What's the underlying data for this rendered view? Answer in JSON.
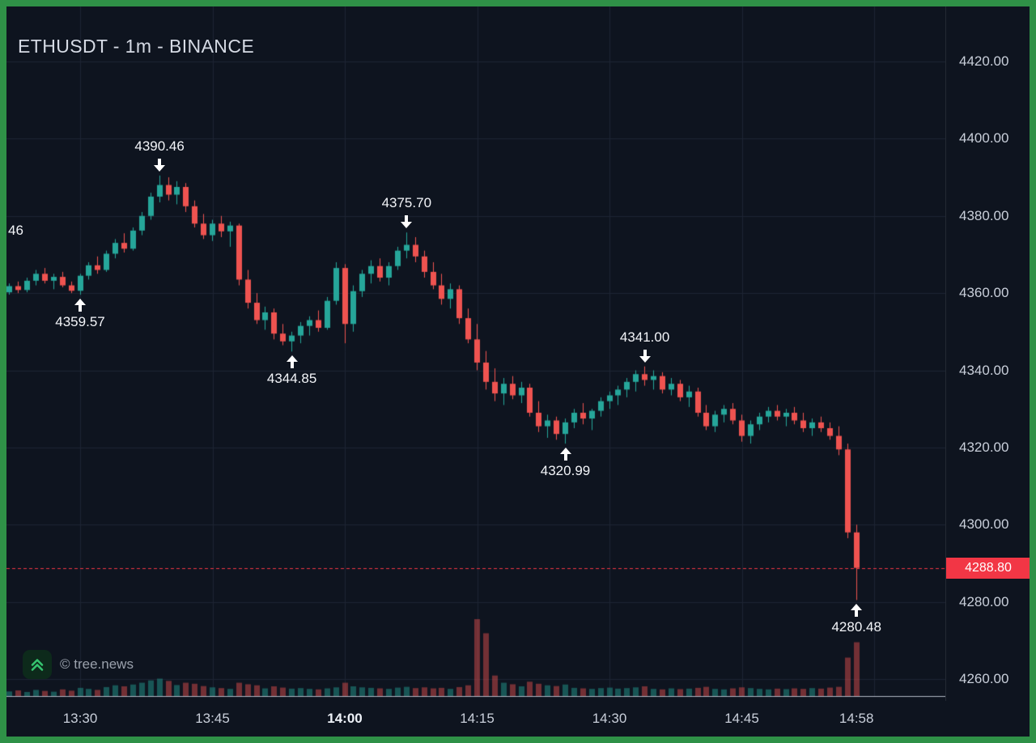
{
  "header": {
    "title": "ETHUSDT - 1m - BINANCE"
  },
  "watermark": {
    "text": "© tree.news"
  },
  "colors": {
    "frame_green": "#2f9147",
    "background": "#0e141f",
    "grid": "#1e2534",
    "up": "#26a69a",
    "down": "#ef5350",
    "volume_up": "rgba(38,166,154,0.45)",
    "volume_down": "rgba(239,83,80,0.45)",
    "axis_text": "#c9cfda",
    "axis_line": "#b2b8c4",
    "annotation_text": "#f3f5f9",
    "price_line": "#f23645",
    "badge_bg": "#f23645",
    "badge_text": "#ffffff"
  },
  "chart_data": {
    "type": "candlestick",
    "symbol": "ETHUSDT",
    "interval": "1m",
    "exchange": "BINANCE",
    "start_time": "13:22",
    "last_price": {
      "label": "4288.80",
      "value": 4288.8
    },
    "clipped_label": "46",
    "y_axis": {
      "top_value": 4420,
      "bottom_value": 4260,
      "ticks": [
        {
          "label": "4420.00",
          "value": 4420
        },
        {
          "label": "4400.00",
          "value": 4400
        },
        {
          "label": "4380.00",
          "value": 4380
        },
        {
          "label": "4360.00",
          "value": 4360
        },
        {
          "label": "4340.00",
          "value": 4340
        },
        {
          "label": "4320.00",
          "value": 4320
        },
        {
          "label": "4300.00",
          "value": 4300
        },
        {
          "label": "4280.00",
          "value": 4280
        },
        {
          "label": "4260.00",
          "value": 4260
        }
      ]
    },
    "x_axis": {
      "ticks": [
        {
          "label": "13:30",
          "minute": 8,
          "bold": false
        },
        {
          "label": "13:45",
          "minute": 23,
          "bold": false
        },
        {
          "label": "14:00",
          "minute": 38,
          "bold": true
        },
        {
          "label": "14:15",
          "minute": 53,
          "bold": false
        },
        {
          "label": "14:30",
          "minute": 68,
          "bold": false
        },
        {
          "label": "14:45",
          "minute": 83,
          "bold": false
        },
        {
          "label": "14:58",
          "minute": 96,
          "bold": false
        }
      ],
      "grid_minutes": [
        8,
        23,
        38,
        53,
        68,
        83,
        98
      ]
    },
    "annotations": [
      {
        "text": "4390.46",
        "index": 17,
        "price": 4390.46,
        "side": "high"
      },
      {
        "text": "4375.70",
        "index": 45,
        "price": 4375.7,
        "side": "high"
      },
      {
        "text": "4341.00",
        "index": 72,
        "price": 4341.0,
        "side": "high"
      },
      {
        "text": "4359.57",
        "index": 8,
        "price": 4359.57,
        "side": "low"
      },
      {
        "text": "4344.85",
        "index": 32,
        "price": 4344.85,
        "side": "low"
      },
      {
        "text": "4320.99",
        "index": 63,
        "price": 4320.99,
        "side": "low"
      },
      {
        "text": "4280.48",
        "index": 96,
        "price": 4280.48,
        "side": "low"
      }
    ],
    "candles": [
      [
        4360.2,
        4362.5,
        4359.6,
        4361.8,
        180
      ],
      [
        4361.8,
        4363.0,
        4360.0,
        4360.8,
        220
      ],
      [
        4360.8,
        4364.0,
        4360.2,
        4363.2,
        160
      ],
      [
        4363.2,
        4366.0,
        4362.0,
        4365.0,
        240
      ],
      [
        4365.0,
        4366.5,
        4362.5,
        4363.2,
        200
      ],
      [
        4363.2,
        4365.0,
        4361.0,
        4364.2,
        170
      ],
      [
        4364.2,
        4365.5,
        4361.5,
        4362.0,
        260
      ],
      [
        4362.0,
        4363.0,
        4360.0,
        4360.6,
        210
      ],
      [
        4360.6,
        4365.0,
        4359.57,
        4364.5,
        320
      ],
      [
        4364.5,
        4368.0,
        4363.5,
        4367.2,
        280
      ],
      [
        4367.2,
        4369.5,
        4365.0,
        4366.0,
        240
      ],
      [
        4366.0,
        4371.0,
        4365.5,
        4370.2,
        350
      ],
      [
        4370.2,
        4374.0,
        4369.0,
        4373.0,
        420
      ],
      [
        4373.0,
        4375.5,
        4370.5,
        4371.5,
        380
      ],
      [
        4371.5,
        4377.0,
        4371.0,
        4376.2,
        450
      ],
      [
        4376.2,
        4381.0,
        4375.0,
        4380.0,
        520
      ],
      [
        4380.0,
        4386.0,
        4379.0,
        4385.0,
        610
      ],
      [
        4385.0,
        4390.46,
        4383.5,
        4388.0,
        680
      ],
      [
        4388.0,
        4390.0,
        4384.0,
        4385.5,
        590
      ],
      [
        4385.5,
        4389.0,
        4383.0,
        4387.5,
        430
      ],
      [
        4387.5,
        4388.5,
        4381.0,
        4382.5,
        520
      ],
      [
        4382.5,
        4384.0,
        4377.0,
        4378.0,
        480
      ],
      [
        4378.0,
        4380.5,
        4374.0,
        4375.0,
        390
      ],
      [
        4375.0,
        4379.0,
        4373.5,
        4378.0,
        340
      ],
      [
        4378.0,
        4380.0,
        4374.5,
        4376.0,
        310
      ],
      [
        4376.0,
        4378.5,
        4372.0,
        4377.5,
        280
      ],
      [
        4377.5,
        4378.0,
        4362.0,
        4363.5,
        520
      ],
      [
        4363.5,
        4366.0,
        4356.0,
        4357.5,
        460
      ],
      [
        4357.5,
        4360.0,
        4352.0,
        4353.0,
        420
      ],
      [
        4353.0,
        4356.5,
        4350.5,
        4355.0,
        300
      ],
      [
        4355.0,
        4356.0,
        4348.0,
        4349.5,
        380
      ],
      [
        4349.5,
        4352.0,
        4346.5,
        4347.5,
        330
      ],
      [
        4347.5,
        4350.0,
        4344.85,
        4349.0,
        290
      ],
      [
        4349.0,
        4352.5,
        4347.0,
        4351.5,
        310
      ],
      [
        4351.5,
        4354.0,
        4349.0,
        4353.0,
        280
      ],
      [
        4353.0,
        4355.5,
        4350.0,
        4351.0,
        260
      ],
      [
        4351.0,
        4359.0,
        4350.5,
        4358.0,
        300
      ],
      [
        4358.0,
        4368.0,
        4357.0,
        4366.5,
        340
      ],
      [
        4366.5,
        4367.5,
        4347.0,
        4352.0,
        520
      ],
      [
        4352.0,
        4362.0,
        4350.0,
        4360.5,
        380
      ],
      [
        4360.5,
        4366.0,
        4359.0,
        4365.0,
        340
      ],
      [
        4365.0,
        4368.5,
        4362.5,
        4367.0,
        320
      ],
      [
        4367.0,
        4369.0,
        4363.0,
        4364.0,
        300
      ],
      [
        4364.0,
        4368.0,
        4362.0,
        4367.0,
        280
      ],
      [
        4367.0,
        4372.0,
        4366.0,
        4371.0,
        330
      ],
      [
        4371.0,
        4375.7,
        4369.0,
        4372.5,
        360
      ],
      [
        4372.5,
        4374.5,
        4368.0,
        4369.5,
        310
      ],
      [
        4369.5,
        4371.0,
        4364.0,
        4365.5,
        340
      ],
      [
        4365.5,
        4368.0,
        4361.0,
        4362.0,
        300
      ],
      [
        4362.0,
        4365.0,
        4357.0,
        4358.5,
        320
      ],
      [
        4358.5,
        4362.5,
        4356.0,
        4361.0,
        280
      ],
      [
        4361.0,
        4362.0,
        4352.0,
        4353.5,
        350
      ],
      [
        4353.5,
        4356.0,
        4347.0,
        4348.0,
        420
      ],
      [
        4348.0,
        4352.0,
        4340.0,
        4342.0,
        3000
      ],
      [
        4342.0,
        4345.0,
        4335.0,
        4337.0,
        2450
      ],
      [
        4337.0,
        4340.5,
        4332.0,
        4334.0,
        800
      ],
      [
        4334.0,
        4338.0,
        4331.0,
        4336.5,
        520
      ],
      [
        4336.5,
        4338.5,
        4332.5,
        4333.5,
        460
      ],
      [
        4333.5,
        4337.0,
        4331.5,
        4335.5,
        380
      ],
      [
        4335.5,
        4336.5,
        4328.0,
        4329.0,
        560
      ],
      [
        4329.0,
        4332.0,
        4324.0,
        4325.5,
        480
      ],
      [
        4325.5,
        4328.5,
        4322.5,
        4327.0,
        420
      ],
      [
        4327.0,
        4328.0,
        4322.0,
        4323.5,
        390
      ],
      [
        4323.5,
        4327.5,
        4320.99,
        4326.5,
        450
      ],
      [
        4326.5,
        4330.0,
        4325.0,
        4329.0,
        320
      ],
      [
        4329.0,
        4331.5,
        4326.0,
        4327.5,
        300
      ],
      [
        4327.5,
        4330.0,
        4324.5,
        4329.5,
        280
      ],
      [
        4329.5,
        4333.0,
        4328.0,
        4332.0,
        310
      ],
      [
        4332.0,
        4334.5,
        4330.0,
        4333.5,
        330
      ],
      [
        4333.5,
        4336.0,
        4331.0,
        4335.0,
        290
      ],
      [
        4335.0,
        4338.0,
        4333.0,
        4337.0,
        310
      ],
      [
        4337.0,
        4340.0,
        4334.5,
        4339.0,
        340
      ],
      [
        4339.0,
        4341.0,
        4336.0,
        4337.5,
        380
      ],
      [
        4337.5,
        4340.0,
        4335.0,
        4338.5,
        280
      ],
      [
        4338.5,
        4339.5,
        4334.0,
        4335.0,
        260
      ],
      [
        4335.0,
        4338.0,
        4333.5,
        4336.5,
        300
      ],
      [
        4336.5,
        4337.5,
        4332.0,
        4333.0,
        270
      ],
      [
        4333.0,
        4336.0,
        4330.5,
        4334.5,
        290
      ],
      [
        4334.5,
        4335.5,
        4328.0,
        4329.0,
        320
      ],
      [
        4329.0,
        4331.0,
        4324.5,
        4325.5,
        360
      ],
      [
        4325.5,
        4329.5,
        4324.0,
        4328.5,
        280
      ],
      [
        4328.5,
        4331.0,
        4326.5,
        4330.0,
        260
      ],
      [
        4330.0,
        4331.5,
        4326.0,
        4327.0,
        300
      ],
      [
        4327.0,
        4328.5,
        4321.5,
        4323.0,
        340
      ],
      [
        4323.0,
        4327.0,
        4321.0,
        4326.0,
        310
      ],
      [
        4326.0,
        4329.0,
        4324.5,
        4328.0,
        280
      ],
      [
        4328.0,
        4330.5,
        4326.5,
        4329.5,
        260
      ],
      [
        4329.5,
        4331.0,
        4327.0,
        4328.0,
        290
      ],
      [
        4328.0,
        4330.0,
        4325.5,
        4329.0,
        270
      ],
      [
        4329.0,
        4330.5,
        4326.0,
        4327.0,
        300
      ],
      [
        4327.0,
        4329.0,
        4324.0,
        4325.0,
        280
      ],
      [
        4325.0,
        4327.5,
        4323.0,
        4326.5,
        310
      ],
      [
        4326.5,
        4328.0,
        4324.0,
        4325.0,
        290
      ],
      [
        4325.0,
        4326.5,
        4322.0,
        4323.0,
        330
      ],
      [
        4323.0,
        4325.5,
        4318.0,
        4319.5,
        360
      ],
      [
        4319.5,
        4321.0,
        4296.5,
        4298.0,
        1500
      ],
      [
        4298.0,
        4300.0,
        4280.48,
        4288.8,
        2100
      ]
    ]
  }
}
